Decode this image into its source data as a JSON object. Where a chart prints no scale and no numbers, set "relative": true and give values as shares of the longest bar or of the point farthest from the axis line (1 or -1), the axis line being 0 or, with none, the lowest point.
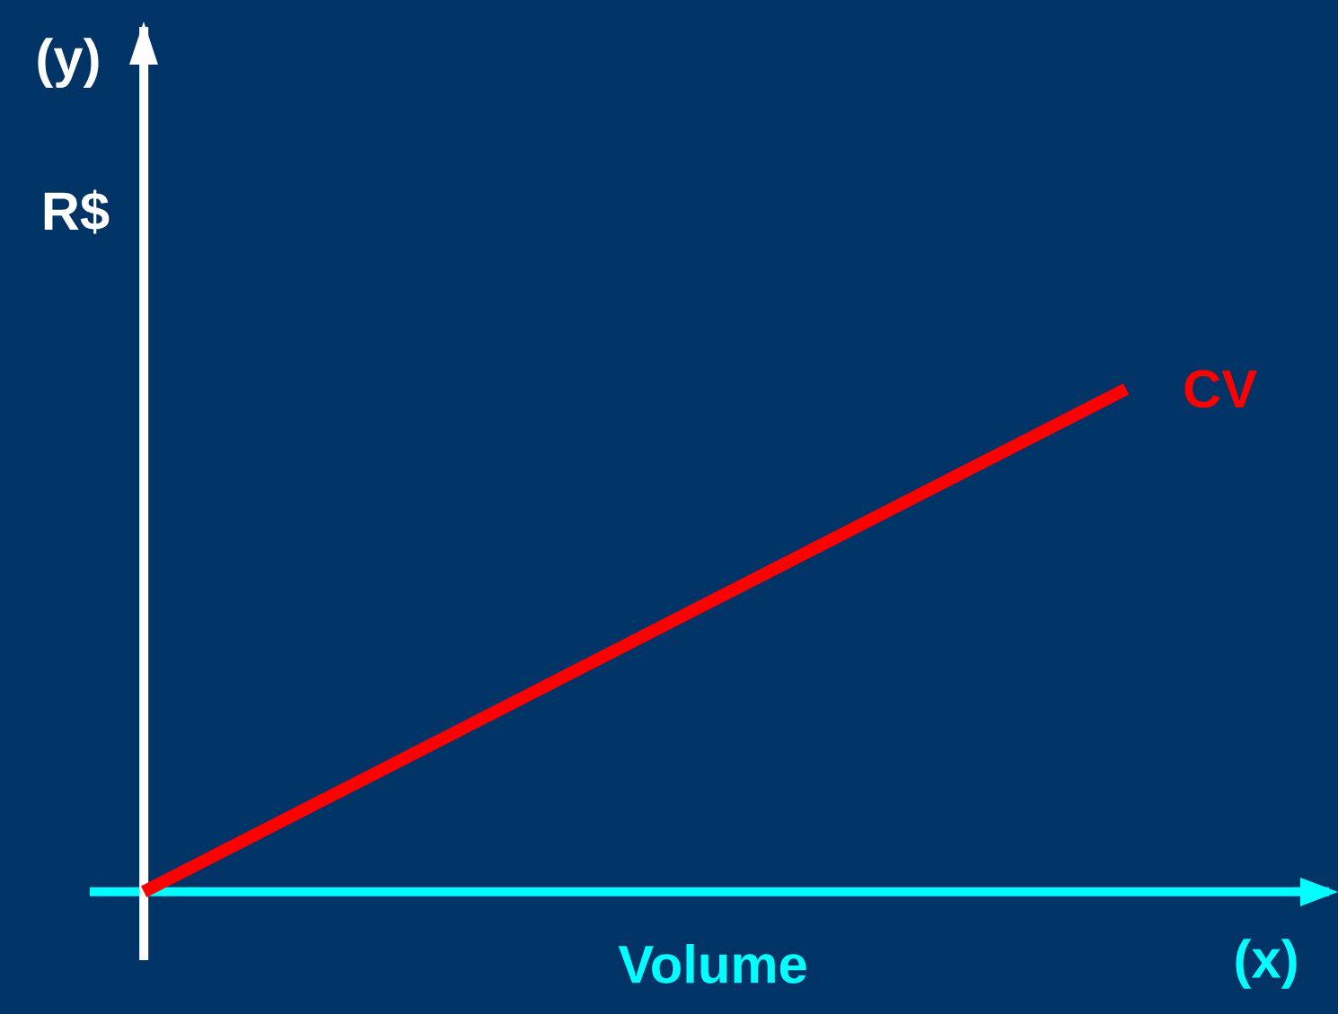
{
  "chart_data": {
    "type": "line",
    "relative": true,
    "categories": [
      null,
      null
    ],
    "series": [
      {
        "name": "CV",
        "color": "#ff0000",
        "values": [
          0,
          1
        ]
      }
    ],
    "xlabel": "Volume",
    "ylabel": "R$",
    "annotations": [
      "(y)",
      "(x)"
    ],
    "marker": "none",
    "line_style": "solid"
  }
}
